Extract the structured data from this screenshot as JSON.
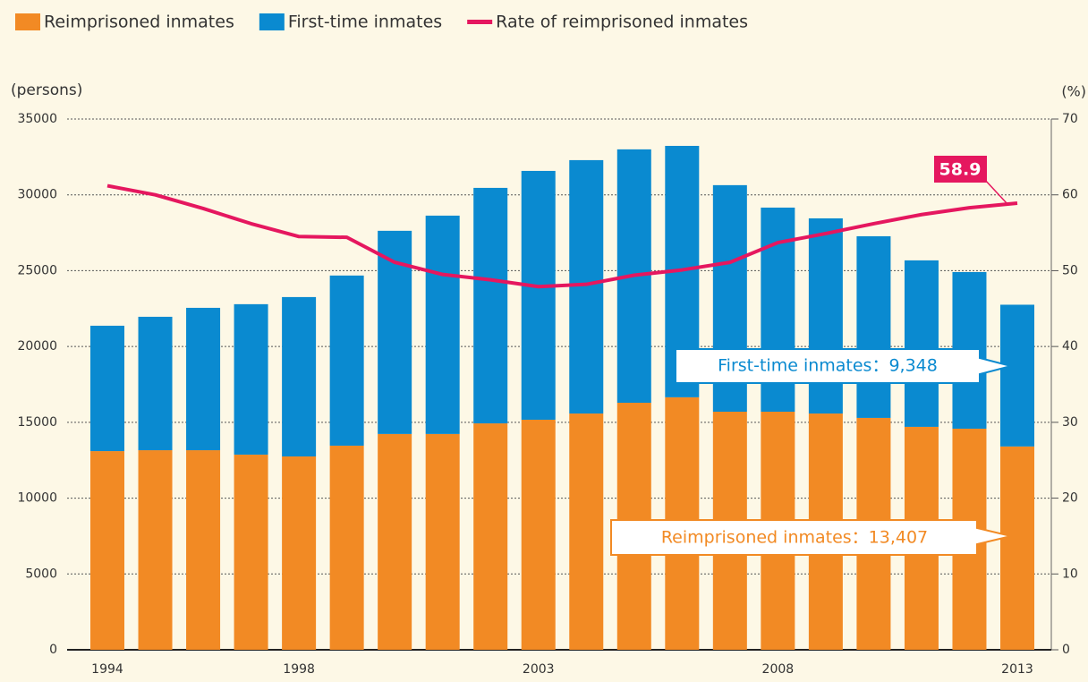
{
  "chart_data": {
    "type": "bar",
    "stacked": true,
    "y_label": "(persons)",
    "y2_label": "(%)",
    "categories": [
      "1994",
      null,
      null,
      null,
      "1998",
      null,
      null,
      null,
      null,
      "2003",
      null,
      null,
      null,
      null,
      "2008",
      null,
      null,
      null,
      null,
      "2013"
    ],
    "series": [
      {
        "name": "Reimprisoned inmates",
        "color": "#f28a24",
        "values": [
          13100,
          13160,
          13160,
          12870,
          12750,
          13460,
          14230,
          14230,
          14930,
          15170,
          15580,
          16290,
          16650,
          15700,
          15700,
          15580,
          15290,
          14700,
          14580,
          13407
        ]
      },
      {
        "name": "First-time inmates",
        "color": "#0a8ad0",
        "values": [
          8270,
          8800,
          9390,
          9920,
          10510,
          11220,
          13400,
          14400,
          15530,
          16410,
          16710,
          16710,
          16580,
          14940,
          13460,
          12870,
          11980,
          10980,
          10330,
          9348
        ]
      },
      {
        "name": "Rate of reimprisoned inmates",
        "color": "#e5175f",
        "type": "line",
        "axis": "y2",
        "values": [
          61.2,
          60.0,
          58.2,
          56.2,
          54.5,
          54.4,
          51.1,
          49.5,
          48.8,
          47.9,
          48.2,
          49.4,
          50.1,
          51.1,
          53.7,
          54.9,
          56.2,
          57.4,
          58.3,
          58.9
        ]
      }
    ],
    "ylim": [
      0,
      35000
    ],
    "yticks": [
      0,
      5000,
      10000,
      15000,
      20000,
      25000,
      30000,
      35000
    ],
    "y2lim": [
      0,
      70
    ],
    "y2ticks": [
      0,
      10,
      20,
      30,
      40,
      50,
      60,
      70
    ],
    "grid": true,
    "legend": "top-left",
    "annotations": [
      "First-time inmates：9,348",
      "Reimprisoned inmates：13,407"
    ]
  }
}
